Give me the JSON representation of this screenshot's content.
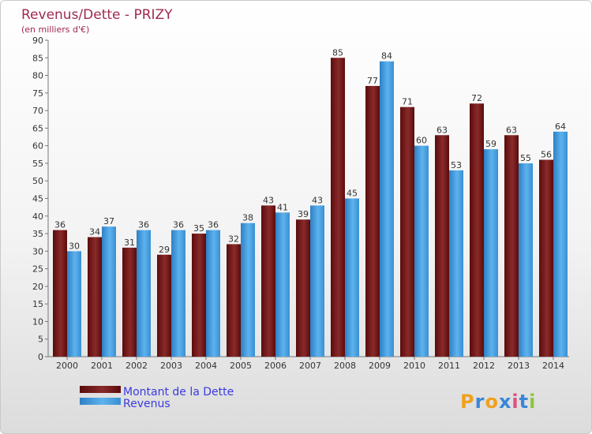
{
  "chart_data": {
    "type": "bar",
    "title": "Revenus/Dette - PRIZY",
    "subtitle": "(en milliers d'€)",
    "categories": [
      "2000",
      "2001",
      "2002",
      "2003",
      "2004",
      "2005",
      "2006",
      "2007",
      "2008",
      "2009",
      "2010",
      "2011",
      "2012",
      "2013",
      "2014"
    ],
    "series": [
      {
        "name": "Montant de la Dette",
        "color": "#7a1a1a",
        "values": [
          36,
          34,
          31,
          29,
          35,
          32,
          43,
          39,
          85,
          77,
          71,
          63,
          72,
          63,
          56
        ]
      },
      {
        "name": "Revenus",
        "color": "#4aa3e6",
        "values": [
          30,
          37,
          36,
          36,
          36,
          38,
          41,
          43,
          45,
          84,
          60,
          53,
          59,
          55,
          64
        ]
      }
    ],
    "ylim": [
      0,
      90
    ],
    "ytick_step": 5,
    "grid": false,
    "legend_position": "bottom-left"
  },
  "brand": {
    "name": "Proxiti",
    "letters": [
      "P",
      "r",
      "o",
      "x",
      "i",
      "t",
      "i"
    ],
    "colors": [
      "#f0a020",
      "#3a86d8",
      "#f0a020",
      "#3a86d8",
      "#e05080",
      "#3a86d8",
      "#8cc63e"
    ]
  }
}
